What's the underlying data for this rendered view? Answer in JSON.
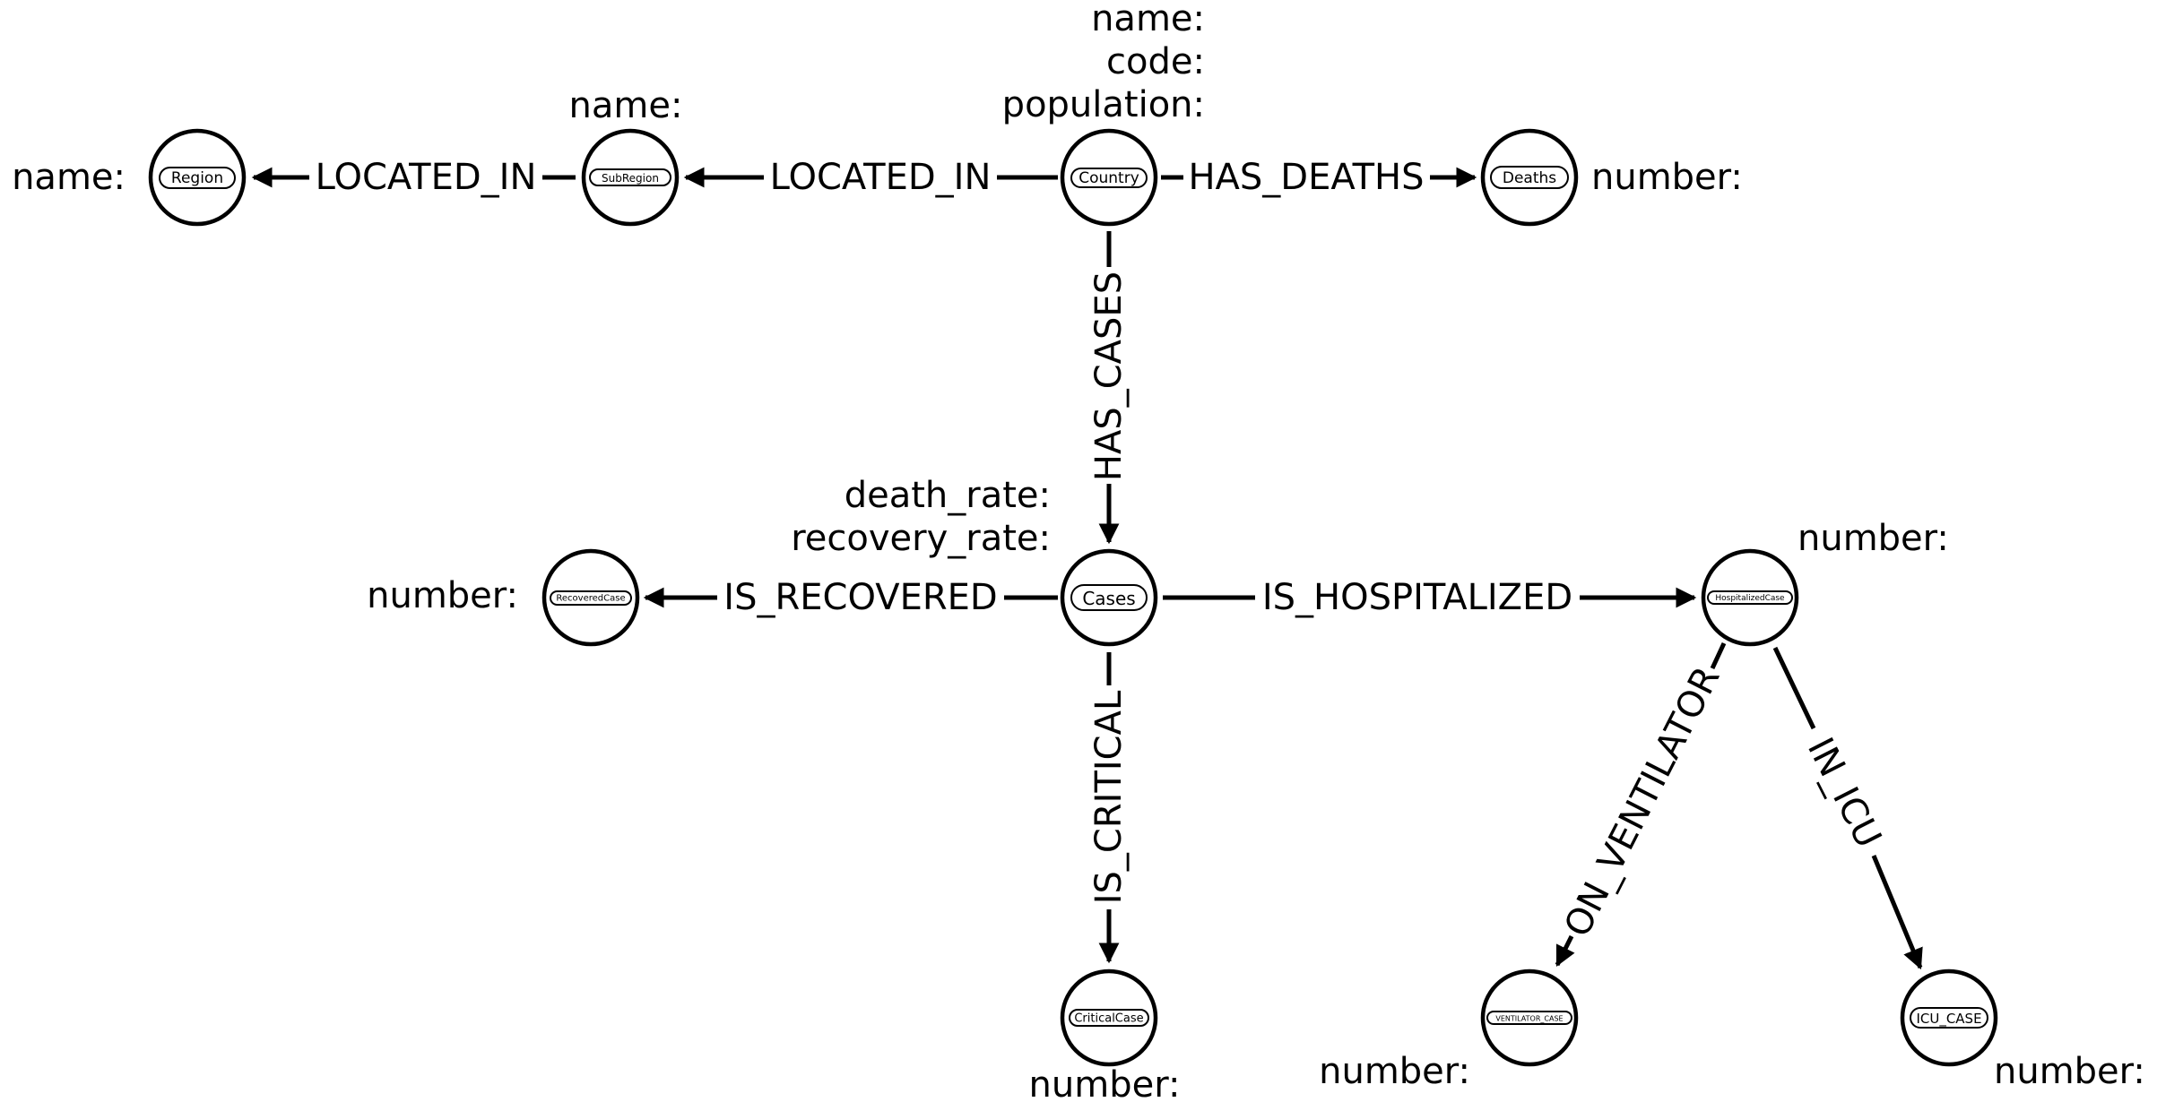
{
  "nodes": {
    "region": {
      "label": "Region",
      "props": [
        "name:"
      ]
    },
    "subregion": {
      "label": "SubRegion",
      "props": [
        "name:"
      ]
    },
    "country": {
      "label": "Country",
      "props": [
        "name:",
        "code:",
        "population:"
      ]
    },
    "deaths": {
      "label": "Deaths",
      "props": [
        "number:"
      ]
    },
    "cases": {
      "label": "Cases",
      "props": [
        "death_rate:",
        "recovery_rate:"
      ]
    },
    "recovered": {
      "label": "RecoveredCase",
      "props": [
        "number:"
      ]
    },
    "hospitalized": {
      "label": "HospitalizedCase",
      "props": [
        "number:"
      ]
    },
    "critical": {
      "label": "CriticalCase",
      "props": [
        "number:"
      ]
    },
    "ventilator": {
      "label": "VENTILATOR_CASE",
      "props": [
        "number:"
      ]
    },
    "icu": {
      "label": "ICU_CASE",
      "props": [
        "number:"
      ]
    }
  },
  "edges": {
    "subregion_region": {
      "label": "LOCATED_IN",
      "from": "SubRegion",
      "to": "Region"
    },
    "country_subregion": {
      "label": "LOCATED_IN",
      "from": "Country",
      "to": "SubRegion"
    },
    "country_deaths": {
      "label": "HAS_DEATHS",
      "from": "Country",
      "to": "Deaths"
    },
    "country_cases": {
      "label": "HAS_CASES",
      "from": "Country",
      "to": "Cases"
    },
    "cases_recovered": {
      "label": "IS_RECOVERED",
      "from": "Cases",
      "to": "RecoveredCase"
    },
    "cases_hospitalized": {
      "label": "IS_HOSPITALIZED",
      "from": "Cases",
      "to": "HospitalizedCase"
    },
    "cases_critical": {
      "label": "IS_CRITICAL",
      "from": "Cases",
      "to": "CriticalCase"
    },
    "hospitalized_ventilator": {
      "label": "ON_VENTILATOR",
      "from": "HospitalizedCase",
      "to": "VENTILATOR_CASE"
    },
    "hospitalized_icu": {
      "label": "IN_ICU",
      "from": "HospitalizedCase",
      "to": "ICU_CASE"
    }
  }
}
